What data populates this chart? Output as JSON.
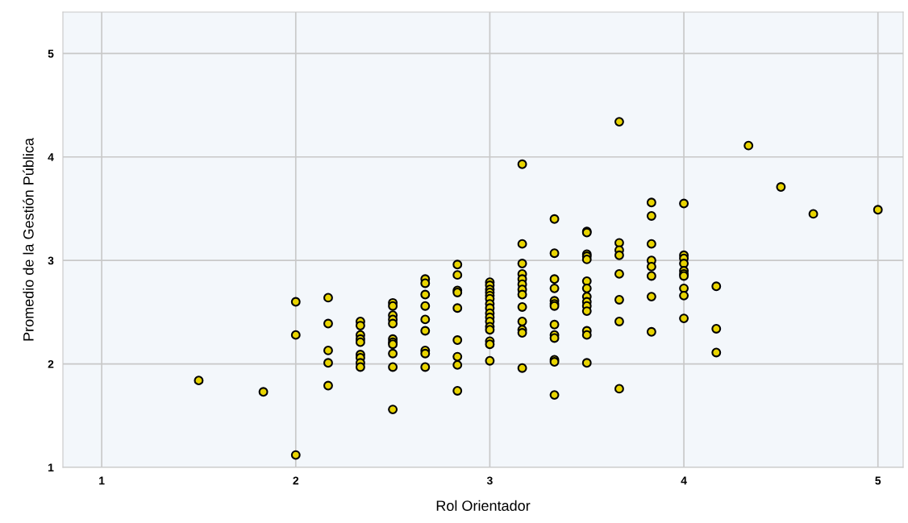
{
  "chart_data": {
    "type": "scatter",
    "xlabel": "Rol Orientador",
    "ylabel": "Promedio de la Gestión Pública",
    "xlim": [
      0.8,
      5.13
    ],
    "ylim": [
      1,
      5.4
    ],
    "xticks": [
      1,
      2,
      3,
      4,
      5
    ],
    "yticks": [
      1,
      2,
      3,
      4,
      5
    ],
    "grid": true,
    "series": [
      {
        "color": "#e8d400",
        "x": [
          1.5,
          1.833,
          2,
          2,
          2,
          2.167,
          2.167,
          2.167,
          2.167,
          2.167,
          2.333,
          2.333,
          2.333,
          2.333,
          2.333,
          2.333,
          2.333,
          2.333,
          2.333,
          2.5,
          2.5,
          2.5,
          2.5,
          2.5,
          2.5,
          2.5,
          2.5,
          2.5,
          2.5,
          2.5,
          2.667,
          2.667,
          2.667,
          2.667,
          2.667,
          2.667,
          2.667,
          2.667,
          2.667,
          2.833,
          2.833,
          2.833,
          2.833,
          2.833,
          2.833,
          2.833,
          2.833,
          2.833,
          3,
          3,
          3,
          3,
          3,
          3,
          3,
          3,
          3,
          3,
          3,
          3,
          3,
          3,
          3,
          3,
          3.167,
          3.167,
          3.167,
          3.167,
          3.167,
          3.167,
          3.167,
          3.167,
          3.167,
          3.167,
          3.167,
          3.167,
          3.167,
          3.333,
          3.333,
          3.333,
          3.333,
          3.333,
          3.333,
          3.333,
          3.333,
          3.333,
          3.333,
          3.333,
          3.333,
          3.333,
          3.5,
          3.5,
          3.5,
          3.5,
          3.5,
          3.5,
          3.5,
          3.5,
          3.5,
          3.5,
          3.5,
          3.5,
          3.5,
          3.5,
          3.667,
          3.667,
          3.667,
          3.667,
          3.667,
          3.667,
          3.667,
          3.667,
          3.833,
          3.833,
          3.833,
          3.833,
          3.833,
          3.833,
          3.833,
          3.833,
          4,
          4,
          4,
          4,
          4,
          4,
          4,
          4,
          4,
          4,
          4.167,
          4.167,
          4.167,
          4.333,
          4.5,
          4.667,
          5
        ],
        "values": [
          1.84,
          1.73,
          2.6,
          2.28,
          1.12,
          2.64,
          2.39,
          2.13,
          2.01,
          1.79,
          2.41,
          2.37,
          2.28,
          2.24,
          2.21,
          2.09,
          2.06,
          2.01,
          1.97,
          2.59,
          2.56,
          2.47,
          2.43,
          2.39,
          2.24,
          2.21,
          2.19,
          2.1,
          1.97,
          1.56,
          2.82,
          2.78,
          2.67,
          2.56,
          2.43,
          2.32,
          2.13,
          2.1,
          1.97,
          2.96,
          2.86,
          2.71,
          2.69,
          2.54,
          2.23,
          2.07,
          1.99,
          1.74,
          2.79,
          2.76,
          2.72,
          2.69,
          2.66,
          2.63,
          2.58,
          2.54,
          2.49,
          2.45,
          2.41,
          2.36,
          2.33,
          2.22,
          2.19,
          2.03,
          3.93,
          3.16,
          2.97,
          2.87,
          2.82,
          2.77,
          2.72,
          2.67,
          2.55,
          2.41,
          2.33,
          2.3,
          1.96,
          3.4,
          3.07,
          2.82,
          2.73,
          2.61,
          2.58,
          2.56,
          2.38,
          2.28,
          2.25,
          2.04,
          2.02,
          1.7,
          3.28,
          3.27,
          3.06,
          3.04,
          3.01,
          2.8,
          2.73,
          2.65,
          2.6,
          2.56,
          2.51,
          2.32,
          2.28,
          2.01,
          4.34,
          3.17,
          3.1,
          3.05,
          2.87,
          2.62,
          2.41,
          1.76,
          3.56,
          3.43,
          3.16,
          3.0,
          2.94,
          2.85,
          2.65,
          2.31,
          3.55,
          3.05,
          3.02,
          2.97,
          2.9,
          2.87,
          2.85,
          2.73,
          2.66,
          2.44,
          2.75,
          2.34,
          2.11,
          4.11,
          3.71,
          3.45,
          3.49
        ]
      }
    ]
  }
}
